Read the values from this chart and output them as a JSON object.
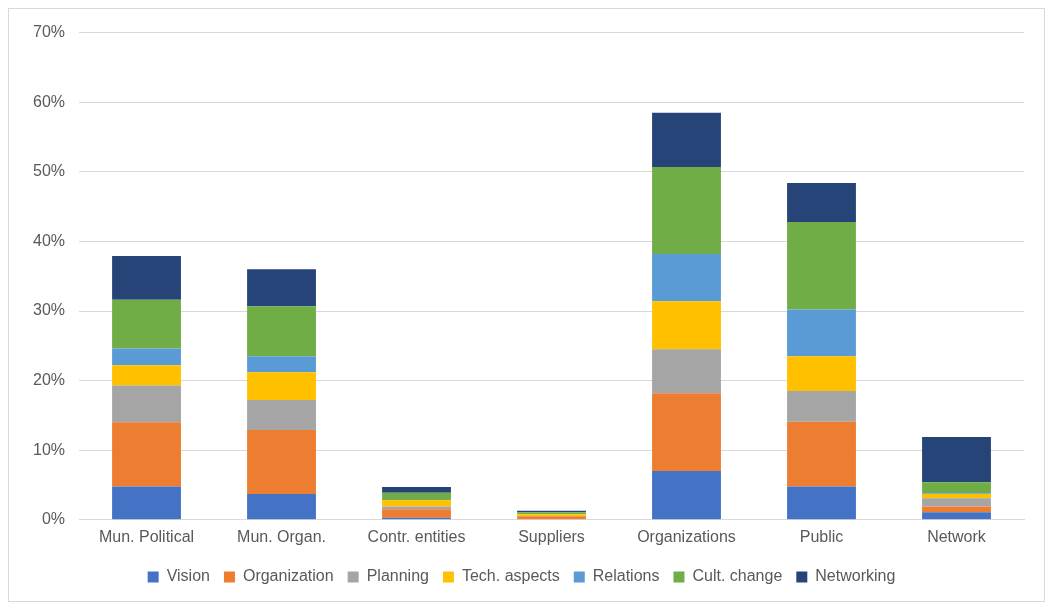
{
  "chart_data": {
    "type": "bar",
    "stacked": true,
    "categories": [
      "Mun. Political",
      "Mun. Organ.",
      "Contr. entities",
      "Suppliers",
      "Organizations",
      "Public",
      "Network"
    ],
    "series": [
      {
        "name": "Vision",
        "color": "#4472c4",
        "values": [
          4.8,
          3.7,
          0.3,
          null,
          7.0,
          4.8,
          1.1
        ]
      },
      {
        "name": "Organization",
        "color": "#ed7d31",
        "values": [
          9.2,
          9.2,
          1.2,
          0.5,
          11.2,
          9.3,
          0.8
        ]
      },
      {
        "name": "Planning",
        "color": "#a5a5a5",
        "values": [
          5.3,
          4.3,
          0.4,
          null,
          6.3,
          4.4,
          1.2
        ]
      },
      {
        "name": "Tech. aspects",
        "color": "#ffc000",
        "values": [
          2.9,
          4.0,
          0.9,
          0.3,
          6.9,
          5.0,
          0.6
        ]
      },
      {
        "name": "Relations",
        "color": "#5b9bd5",
        "values": [
          2.4,
          2.3,
          null,
          null,
          6.8,
          6.7,
          0.1
        ]
      },
      {
        "name": "Cult. change",
        "color": "#70ad47",
        "values": [
          7.0,
          7.2,
          1.1,
          0.3,
          12.5,
          12.6,
          1.6
        ]
      },
      {
        "name": "Networking",
        "color": "#264478",
        "values": [
          6.3,
          5.3,
          0.8,
          0.2,
          7.8,
          5.6,
          6.5
        ]
      }
    ],
    "ylim": [
      0,
      70
    ],
    "yticks": [
      {
        "value": 0,
        "label": "0%"
      },
      {
        "value": 10,
        "label": "10%"
      },
      {
        "value": 20,
        "label": "20%"
      },
      {
        "value": 30,
        "label": "30%"
      },
      {
        "value": 40,
        "label": "40%"
      },
      {
        "value": 50,
        "label": "50%"
      },
      {
        "value": 60,
        "label": "60%"
      },
      {
        "value": 70,
        "label": "70%"
      }
    ],
    "grid": "y",
    "legend": "bottom"
  }
}
